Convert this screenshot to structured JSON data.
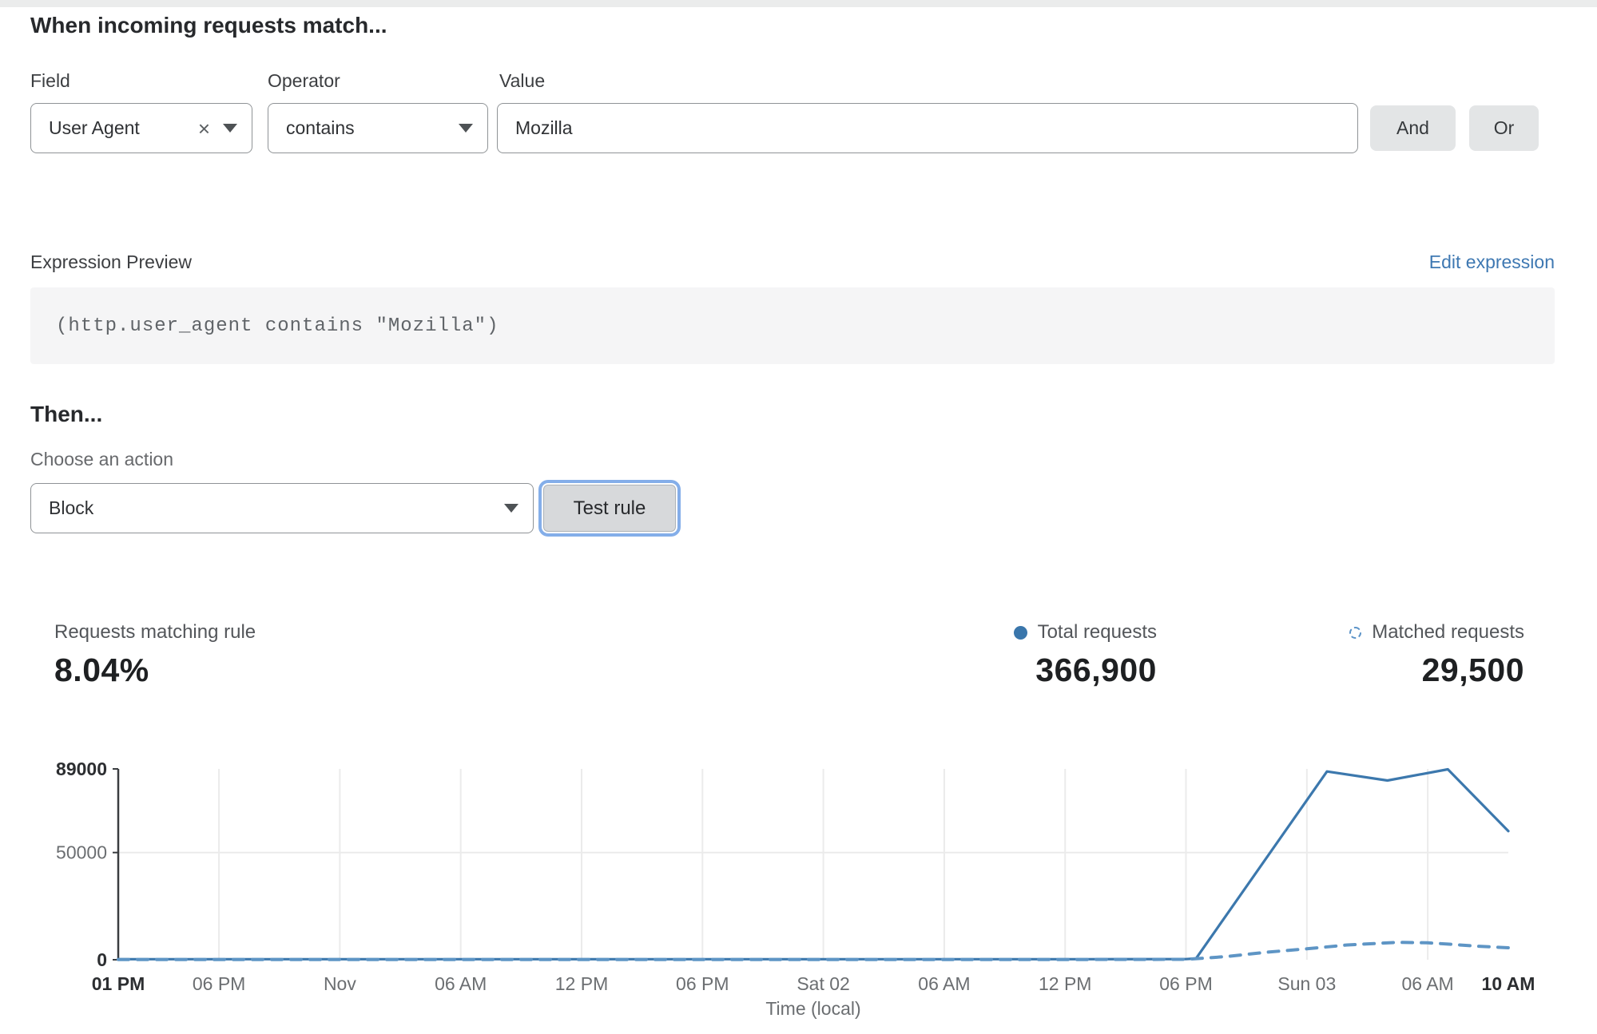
{
  "match_section": {
    "heading": "When incoming requests match...",
    "field": {
      "label": "Field",
      "value": "User Agent"
    },
    "operator": {
      "label": "Operator",
      "value": "contains"
    },
    "value_field": {
      "label": "Value",
      "value": "Mozilla"
    },
    "and_label": "And",
    "or_label": "Or"
  },
  "icons": {
    "clear": "×"
  },
  "expression": {
    "label": "Expression Preview",
    "edit_link": "Edit expression",
    "code": "(http.user_agent contains \"Mozilla\")"
  },
  "action_section": {
    "heading": "Then...",
    "choose_label": "Choose an action",
    "action_value": "Block",
    "test_button_label": "Test rule"
  },
  "stats": {
    "matching": {
      "label": "Requests matching rule",
      "value": "8.04%"
    },
    "total": {
      "label": "Total requests",
      "value": "366,900",
      "color": "#3a76ab"
    },
    "matched": {
      "label": "Matched requests",
      "value": "29,500",
      "color": "#5b93c8"
    }
  },
  "chart_data": {
    "type": "line",
    "title": "",
    "xlabel": "Time (local)",
    "ylabel": "",
    "ylim": [
      0,
      89000
    ],
    "x_range_hours": [
      0,
      69
    ],
    "grid": true,
    "legend_position": "above-right",
    "axis_color": "#3a3d40",
    "grid_color": "#ebebeb",
    "y_ticks": [
      {
        "value": 0,
        "label": "0",
        "bold": true
      },
      {
        "value": 50000,
        "label": "50000",
        "bold": false
      },
      {
        "value": 89000,
        "label": "89000",
        "bold": true
      }
    ],
    "x_ticks": [
      {
        "t": 0,
        "label": "01 PM",
        "bold": true
      },
      {
        "t": 5,
        "label": "06 PM",
        "bold": false
      },
      {
        "t": 11,
        "label": "Nov",
        "bold": false
      },
      {
        "t": 17,
        "label": "06 AM",
        "bold": false
      },
      {
        "t": 23,
        "label": "12 PM",
        "bold": false
      },
      {
        "t": 29,
        "label": "06 PM",
        "bold": false
      },
      {
        "t": 35,
        "label": "Sat 02",
        "bold": false
      },
      {
        "t": 41,
        "label": "06 AM",
        "bold": false
      },
      {
        "t": 47,
        "label": "12 PM",
        "bold": false
      },
      {
        "t": 53,
        "label": "06 PM",
        "bold": false
      },
      {
        "t": 59,
        "label": "Sun 03",
        "bold": false
      },
      {
        "t": 65,
        "label": "06 AM",
        "bold": false
      },
      {
        "t": 69,
        "label": "10 AM",
        "bold": true
      }
    ],
    "series": [
      {
        "name": "Total requests",
        "style": "solid",
        "color": "#3c78ad",
        "points": [
          [
            0,
            250
          ],
          [
            6,
            250
          ],
          [
            12,
            250
          ],
          [
            18,
            250
          ],
          [
            24,
            250
          ],
          [
            30,
            250
          ],
          [
            36,
            250
          ],
          [
            42,
            250
          ],
          [
            48,
            250
          ],
          [
            53,
            300
          ],
          [
            53.5,
            600
          ],
          [
            60,
            87800
          ],
          [
            63,
            83600
          ],
          [
            66,
            88800
          ],
          [
            69,
            60000
          ]
        ]
      },
      {
        "name": "Matched requests",
        "style": "dashed",
        "color": "#5e95c5",
        "points": [
          [
            0,
            120
          ],
          [
            6,
            120
          ],
          [
            12,
            120
          ],
          [
            18,
            120
          ],
          [
            24,
            120
          ],
          [
            30,
            120
          ],
          [
            36,
            120
          ],
          [
            42,
            120
          ],
          [
            48,
            120
          ],
          [
            53,
            200
          ],
          [
            55,
            1500
          ],
          [
            57,
            3500
          ],
          [
            59,
            5100
          ],
          [
            61,
            6900
          ],
          [
            63.5,
            8100
          ],
          [
            65,
            7900
          ],
          [
            66,
            7300
          ],
          [
            67.5,
            6300
          ],
          [
            69,
            5600
          ]
        ]
      }
    ]
  }
}
